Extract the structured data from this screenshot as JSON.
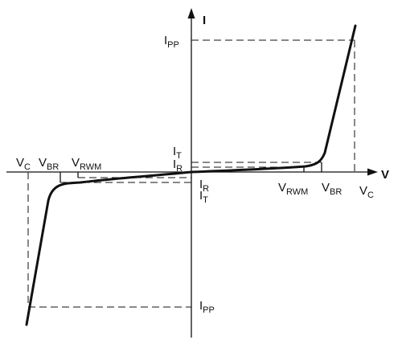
{
  "colors": {
    "line": "#111111",
    "background": "#ffffff"
  },
  "axes": {
    "current_label": "I",
    "voltage_label": "V"
  },
  "labels": {
    "ipp_top": {
      "main": "I",
      "sub": "PP"
    },
    "it_right": {
      "main": "I",
      "sub": "T"
    },
    "ir_right": {
      "main": "I",
      "sub": "R"
    },
    "vrwm_right": {
      "main": "V",
      "sub": "RWM"
    },
    "vbr_right": {
      "main": "V",
      "sub": "BR"
    },
    "vc_right": {
      "main": "V",
      "sub": "C"
    },
    "vc_left": {
      "main": "V",
      "sub": "C"
    },
    "vbr_left": {
      "main": "V",
      "sub": "BR"
    },
    "vrwm_left": {
      "main": "V",
      "sub": "RWM"
    },
    "ir_left": {
      "main": "I",
      "sub": "R"
    },
    "it_left": {
      "main": "I",
      "sub": "T"
    },
    "ipp_bottom": {
      "main": "I",
      "sub": "PP"
    }
  }
}
